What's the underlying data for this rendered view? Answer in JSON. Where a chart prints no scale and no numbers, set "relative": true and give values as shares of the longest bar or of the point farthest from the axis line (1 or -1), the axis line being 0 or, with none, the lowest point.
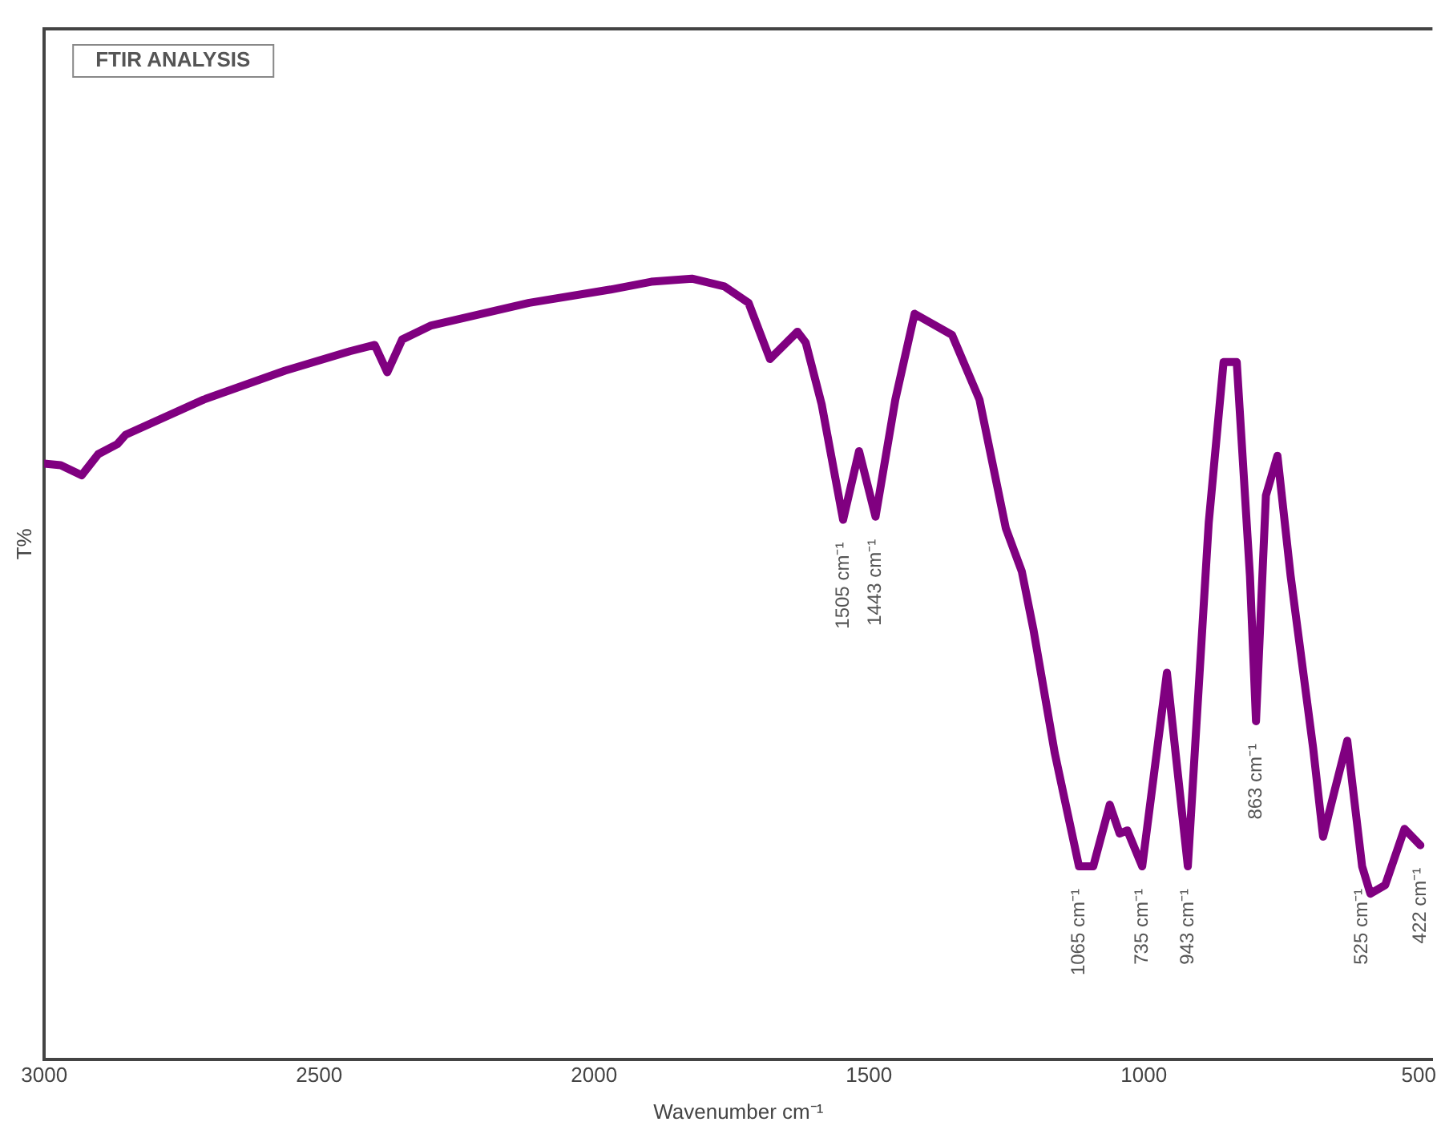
{
  "chart_data": {
    "type": "line",
    "title": "FTIR ANALYSIS",
    "xlabel": "Wavenumber cm⁻¹",
    "ylabel": "T%",
    "relative": true,
    "xlim": [
      3000,
      475
    ],
    "xticks": [
      3000,
      2500,
      2000,
      1500,
      1000,
      500
    ],
    "grid": false,
    "legend": false,
    "marker": "none",
    "line_style": "solid",
    "series": [
      {
        "color": "#800080",
        "x": [
          3000,
          2970,
          2932,
          2902,
          2867,
          2852,
          2710,
          2562,
          2444,
          2399,
          2376,
          2349,
          2296,
          2118,
          1970,
          1896,
          1822,
          1763,
          1719,
          1680,
          1630,
          1615,
          1586,
          1547,
          1518,
          1488,
          1452,
          1417,
          1349,
          1299,
          1251,
          1222,
          1201,
          1162,
          1118,
          1092,
          1062,
          1044,
          1030,
          1003,
          958,
          920,
          882,
          855,
          831,
          807,
          796,
          778,
          757,
          733,
          692,
          674,
          653,
          630,
          603,
          588,
          561,
          526,
          497
        ],
        "values": [
          0.763,
          0.761,
          0.748,
          0.775,
          0.788,
          0.8,
          0.845,
          0.882,
          0.907,
          0.915,
          0.88,
          0.922,
          0.94,
          0.969,
          0.986,
          0.996,
          1,
          0.99,
          0.969,
          0.897,
          0.932,
          0.918,
          0.839,
          0.691,
          0.779,
          0.695,
          0.845,
          0.955,
          0.928,
          0.845,
          0.68,
          0.625,
          0.551,
          0.392,
          0.247,
          0.247,
          0.326,
          0.289,
          0.293,
          0.247,
          0.495,
          0.247,
          0.687,
          0.893,
          0.893,
          0.619,
          0.433,
          0.722,
          0.773,
          0.619,
          0.398,
          0.285,
          0.344,
          0.408,
          0.247,
          0.212,
          0.223,
          0.295,
          0.274
        ]
      }
    ],
    "annotations": [
      {
        "text": "1505 cm⁻¹",
        "x": 1547,
        "y": 0.691
      },
      {
        "text": "1443 cm⁻¹",
        "x": 1488,
        "y": 0.695
      },
      {
        "text": "863 cm⁻¹",
        "x": 796,
        "y": 0.433
      },
      {
        "text": "1065 cm⁻¹",
        "x": 1118,
        "y": 0.247
      },
      {
        "text": "735 cm⁻¹",
        "x": 1003,
        "y": 0.247
      },
      {
        "text": "943 cm⁻¹",
        "x": 920,
        "y": 0.247
      },
      {
        "text": "525 cm⁻¹",
        "x": 603,
        "y": 0.247
      },
      {
        "text": "422 cm⁻¹",
        "x": 497,
        "y": 0.274
      }
    ]
  }
}
